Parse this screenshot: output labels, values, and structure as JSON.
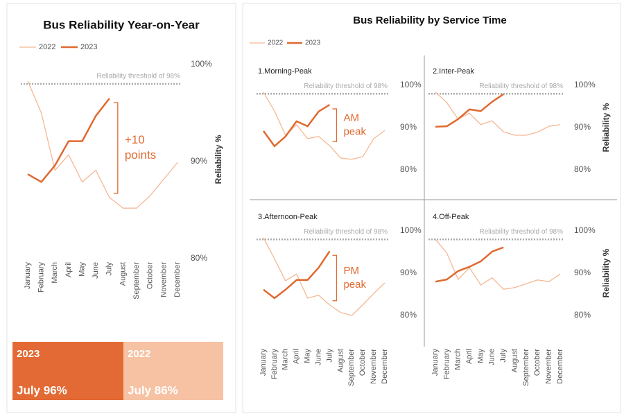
{
  "chart_data": [
    {
      "type": "line",
      "title": "Bus Reliability Year-on-Year",
      "categories": [
        "January",
        "February",
        "March",
        "April",
        "May",
        "June",
        "July",
        "August",
        "September",
        "October",
        "November",
        "December"
      ],
      "series": [
        {
          "name": "2022",
          "color": "#f5b894",
          "values": [
            98.3,
            95.0,
            89.1,
            90.7,
            87.9,
            89.1,
            86.3,
            85.2,
            85.2,
            86.5,
            88.2,
            89.9
          ]
        },
        {
          "name": "2023",
          "color": "#e0692f",
          "values": [
            88.7,
            87.9,
            89.6,
            92.1,
            92.1,
            94.7,
            96.5,
            null,
            null,
            null,
            null,
            null
          ]
        }
      ],
      "ylim": [
        80,
        100
      ],
      "yticks": [
        {
          "value": 80,
          "label": "80%"
        },
        {
          "value": 90,
          "label": "90%"
        },
        {
          "value": 100,
          "label": "100%"
        }
      ],
      "y_label": "Reliability %",
      "threshold": {
        "value": 98,
        "label": "Reliability threshold of 98%"
      },
      "annotation_lines": [
        "+10",
        "points"
      ]
    },
    {
      "type": "line",
      "title": "Bus Reliability by Service Time",
      "legend": [
        {
          "name": "2022",
          "color": "#f5b894"
        },
        {
          "name": "2023",
          "color": "#e0692f"
        }
      ],
      "categories": [
        "January",
        "February",
        "March",
        "April",
        "May",
        "June",
        "July",
        "August",
        "September",
        "October",
        "November",
        "December"
      ],
      "ylim": [
        80,
        100
      ],
      "yticks": [
        {
          "value": 80,
          "label": "80%"
        },
        {
          "value": 90,
          "label": "90%"
        },
        {
          "value": 100,
          "label": "100%"
        }
      ],
      "y_label": "Reliability %",
      "threshold": {
        "value": 98,
        "label": "Reliability threshold of 98%"
      },
      "panels": [
        {
          "title": "1.Morning-Peak",
          "series": [
            {
              "values": [
                98.4,
                93.9,
                88.2,
                90.7,
                87.4,
                87.9,
                85.7,
                82.8,
                82.5,
                83.1,
                87.4,
                89.3
              ]
            },
            {
              "values": [
                89.2,
                85.6,
                87.9,
                91.5,
                90.3,
                93.8,
                95.4,
                null,
                null,
                null,
                null,
                null
              ]
            }
          ],
          "annotation_lines": [
            "AM",
            "peak"
          ]
        },
        {
          "title": "2.Inter-Peak",
          "series": [
            {
              "values": [
                98.4,
                95.9,
                92.0,
                93.4,
                90.7,
                91.6,
                89.0,
                88.2,
                88.2,
                88.9,
                90.3,
                90.7
              ]
            },
            {
              "values": [
                90.2,
                90.3,
                92.0,
                94.3,
                93.9,
                96.1,
                97.9,
                null,
                null,
                null,
                null,
                null
              ]
            }
          ]
        },
        {
          "title": "3.Afternoon-Peak",
          "series": [
            {
              "values": [
                98.4,
                93.4,
                88.2,
                89.8,
                84.1,
                84.8,
                82.5,
                80.7,
                80.0,
                82.5,
                85.2,
                87.7
              ]
            },
            {
              "values": [
                86.1,
                84.1,
                86.1,
                88.4,
                88.4,
                91.3,
                95.2,
                null,
                null,
                null,
                null,
                null
              ]
            }
          ],
          "annotation_lines": [
            "PM",
            "peak"
          ]
        },
        {
          "title": "4.Off-Peak",
          "series": [
            {
              "values": [
                98.0,
                94.8,
                88.5,
                91.3,
                87.2,
                88.9,
                86.2,
                86.6,
                87.5,
                88.4,
                88.0,
                89.8
              ]
            },
            {
              "values": [
                88.0,
                88.5,
                90.5,
                91.5,
                92.8,
                95.1,
                96.1,
                null,
                null,
                null,
                null,
                null
              ]
            }
          ]
        }
      ]
    }
  ],
  "cards": [
    {
      "title": "2023",
      "text": "July 96%",
      "color": "#e36a34"
    },
    {
      "title": "2022",
      "text": "July 86%",
      "color": "#f6c2a3"
    }
  ]
}
